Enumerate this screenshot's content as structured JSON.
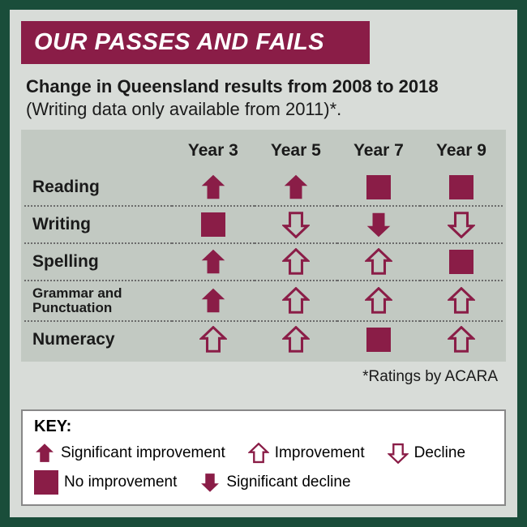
{
  "colors": {
    "brand": "#8a1d47",
    "card_bg": "#d8dcd8",
    "table_bg": "#c2c9c2",
    "page_bg": "#1a4d3a",
    "text": "#1a1a1a",
    "title_text": "#ffffff",
    "key_bg": "#ffffff",
    "dotted": "#6b6b6b"
  },
  "title": "OUR PASSES AND FAILS",
  "subtitle_bold": "Change in Queensland results from 2008 to 2018",
  "subtitle_rest": "(Writing data only available from 2011)*.",
  "columns": [
    "Year 3",
    "Year 5",
    "Year 7",
    "Year 9"
  ],
  "rows": [
    {
      "label": "Reading",
      "small": false,
      "cells": [
        "sig-up",
        "sig-up",
        "none",
        "none"
      ]
    },
    {
      "label": "Writing",
      "small": false,
      "cells": [
        "none",
        "decline",
        "sig-down",
        "decline"
      ]
    },
    {
      "label": "Spelling",
      "small": false,
      "cells": [
        "sig-up",
        "up",
        "up",
        "none"
      ]
    },
    {
      "label": "Grammar and Punctuation",
      "small": true,
      "cells": [
        "sig-up",
        "up",
        "up",
        "up"
      ]
    },
    {
      "label": "Numeracy",
      "small": false,
      "cells": [
        "up",
        "up",
        "none",
        "up"
      ]
    }
  ],
  "ratings_note": "*Ratings by ACARA",
  "key": {
    "title": "KEY:",
    "items": [
      {
        "type": "sig-up",
        "label": "Significant improvement"
      },
      {
        "type": "up",
        "label": "Improvement"
      },
      {
        "type": "decline",
        "label": "Decline"
      },
      {
        "type": "none",
        "label": "No improvement"
      },
      {
        "type": "sig-down",
        "label": "Significant decline"
      }
    ]
  },
  "icon_style": {
    "fill_color": "#8a1d47",
    "arrow_size": 34,
    "square_size": 30,
    "stroke_width": 3
  }
}
